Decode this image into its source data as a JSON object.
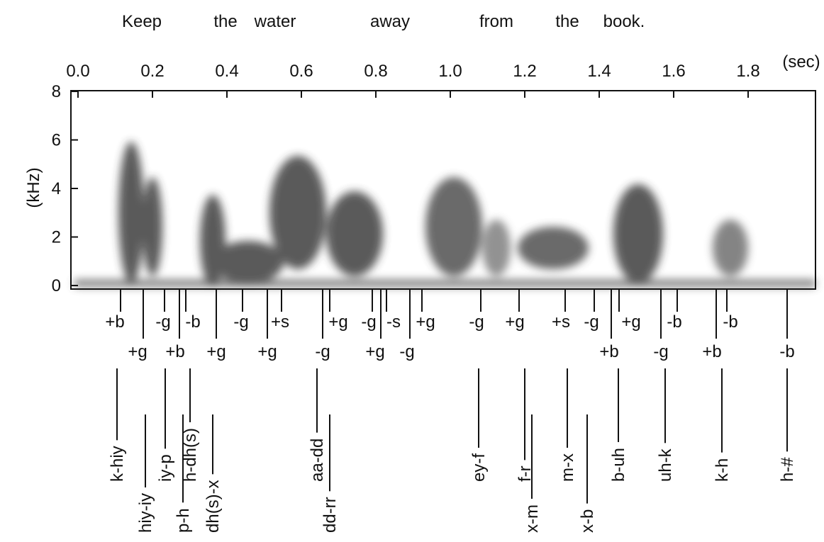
{
  "sentence": {
    "words": [
      "Keep",
      "the",
      "water",
      "away",
      "from",
      "the",
      "book."
    ]
  },
  "x_axis": {
    "ticks": [
      "0.0",
      "0.2",
      "0.4",
      "0.6",
      "0.8",
      "1.0",
      "1.2",
      "1.4",
      "1.6",
      "1.8"
    ],
    "unit": "(sec)"
  },
  "y_axis": {
    "label": "(kHz)",
    "ticks": [
      "0",
      "2",
      "4",
      "6",
      "8"
    ]
  },
  "landmarks": [
    {
      "label": "+b"
    },
    {
      "label": "+g"
    },
    {
      "label": "-g"
    },
    {
      "label": "+b"
    },
    {
      "label": "-b"
    },
    {
      "label": "+g"
    },
    {
      "label": "-g"
    },
    {
      "label": "+g"
    },
    {
      "label": "+s"
    },
    {
      "label": "-g"
    },
    {
      "label": "+g"
    },
    {
      "label": "-g"
    },
    {
      "label": "+g"
    },
    {
      "label": "-s"
    },
    {
      "label": "-g"
    },
    {
      "label": "+g"
    },
    {
      "label": "-g"
    },
    {
      "label": "+g"
    },
    {
      "label": "+s"
    },
    {
      "label": "-g"
    },
    {
      "label": "+b"
    },
    {
      "label": "+g"
    },
    {
      "label": "-g"
    },
    {
      "label": "-b"
    },
    {
      "label": "+b"
    },
    {
      "label": "-b"
    },
    {
      "label": "-b"
    }
  ],
  "transitions": [
    {
      "label": "k-hiy"
    },
    {
      "label": "hiy-iy"
    },
    {
      "label": "iy-p"
    },
    {
      "label": "p-h"
    },
    {
      "label": "h-dh(s)"
    },
    {
      "label": "dh(s)-x"
    },
    {
      "label": "aa-dd"
    },
    {
      "label": "dd-rr"
    },
    {
      "label": "ey-f"
    },
    {
      "label": "f-r"
    },
    {
      "label": "x-m"
    },
    {
      "label": "m-x"
    },
    {
      "label": "x-b"
    },
    {
      "label": "b-uh"
    },
    {
      "label": "uh-k"
    },
    {
      "label": "k-h"
    },
    {
      "label": "h-#"
    }
  ]
}
